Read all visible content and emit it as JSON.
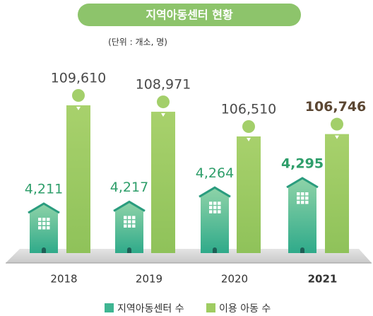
{
  "chart_data": {
    "type": "bar",
    "title": "지역아동센터 현황",
    "subtitle": "(단위 : 개소, 명)",
    "categories": [
      "2018",
      "2019",
      "2020",
      "2021"
    ],
    "series": [
      {
        "name": "지역아동센터 수",
        "color": "#3fb592",
        "values": [
          4211,
          4217,
          4264,
          4295
        ],
        "value_labels": [
          "4,211",
          "4,217",
          "4,264",
          "4,295"
        ]
      },
      {
        "name": "이용 아동 수",
        "color": "#9fcc62",
        "values": [
          109610,
          108971,
          106510,
          106746
        ],
        "value_labels": [
          "109,610",
          "108,971",
          "106,510",
          "106,746"
        ]
      }
    ]
  }
}
